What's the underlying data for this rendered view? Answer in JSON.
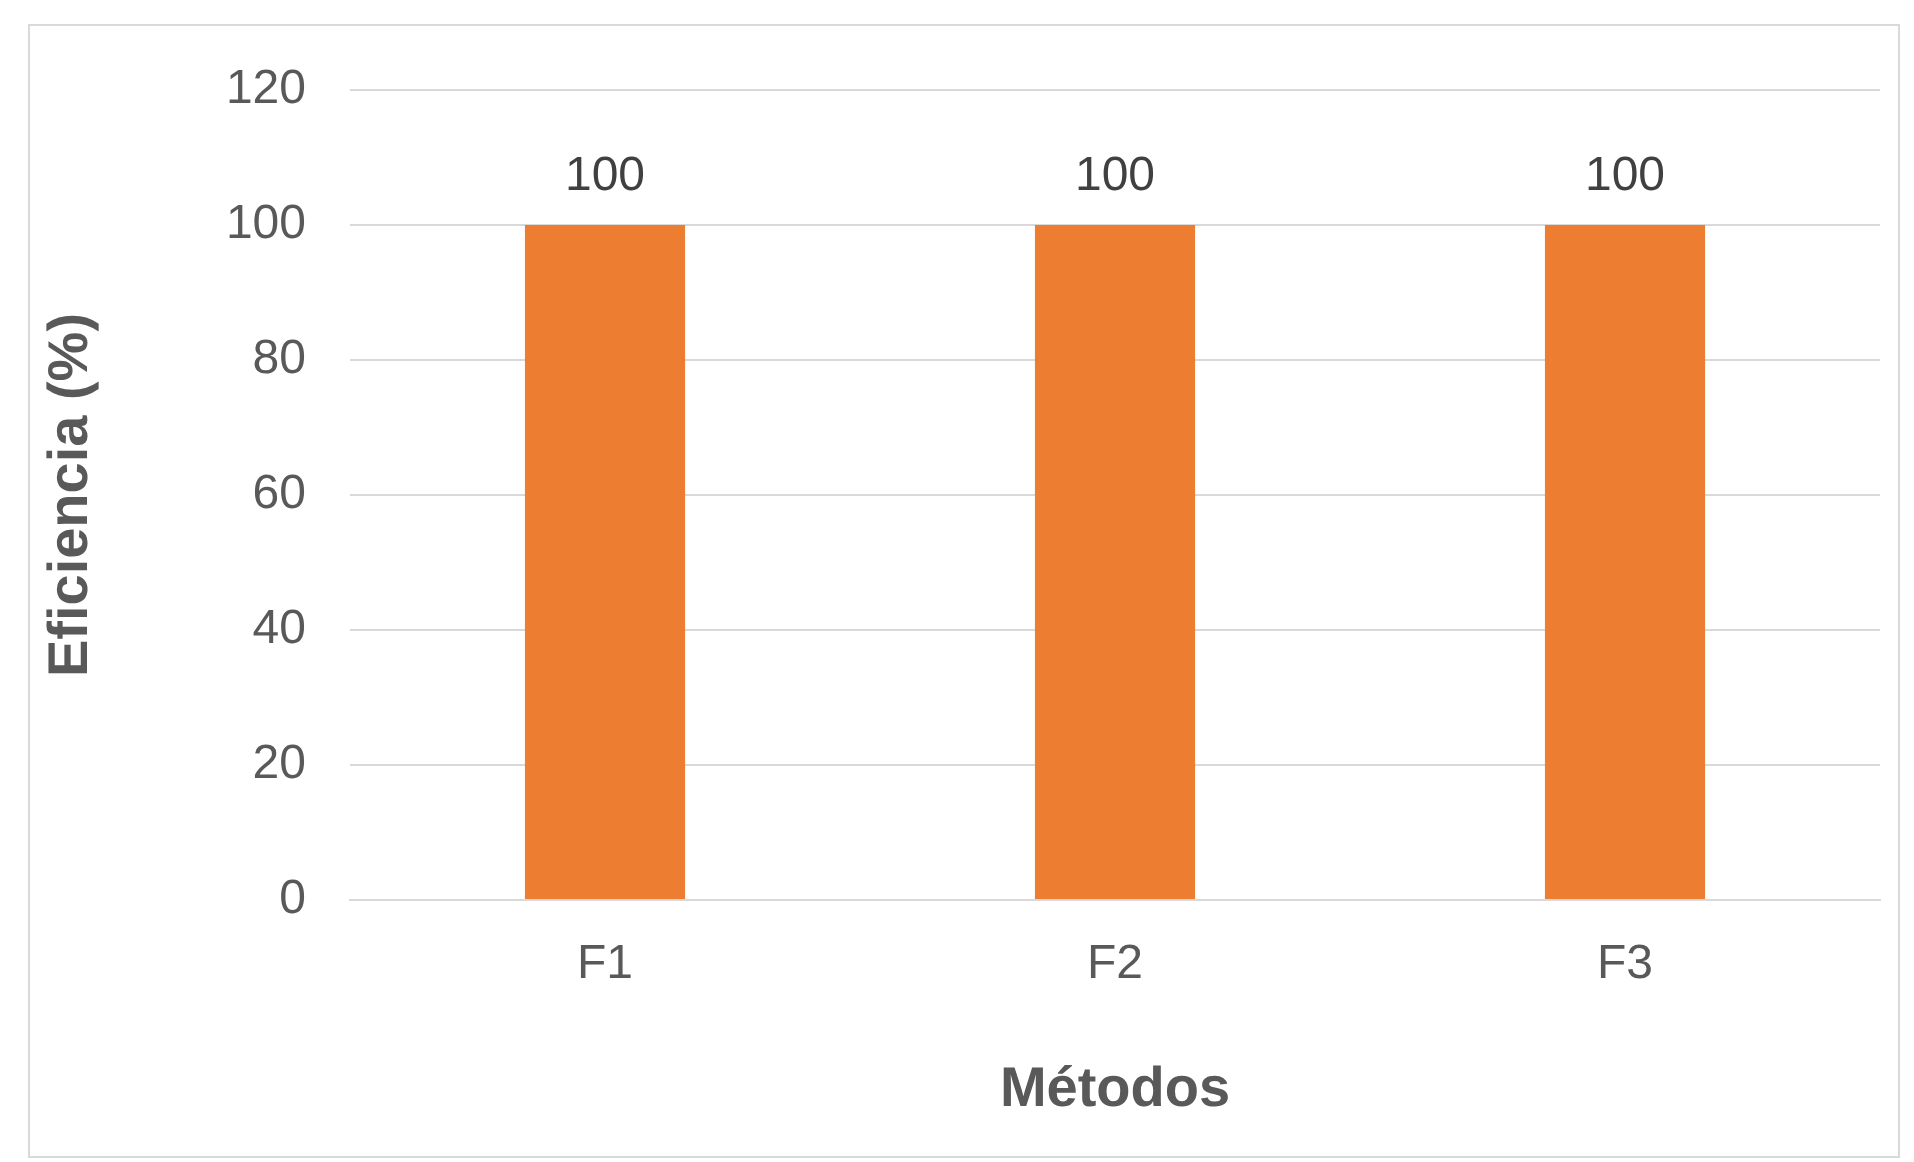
{
  "chart_data": {
    "type": "bar",
    "xlabel": "Métodos",
    "ylabel": "Eficiencia (%)",
    "categories": [
      "F1",
      "F2",
      "F3"
    ],
    "values": [
      100,
      100,
      100
    ],
    "color": "#ed7d31",
    "ylim": [
      0,
      120
    ],
    "yticks": [
      0,
      20,
      40,
      60,
      80,
      100,
      120
    ],
    "grid": "y",
    "data_labels": true,
    "legend": false
  }
}
